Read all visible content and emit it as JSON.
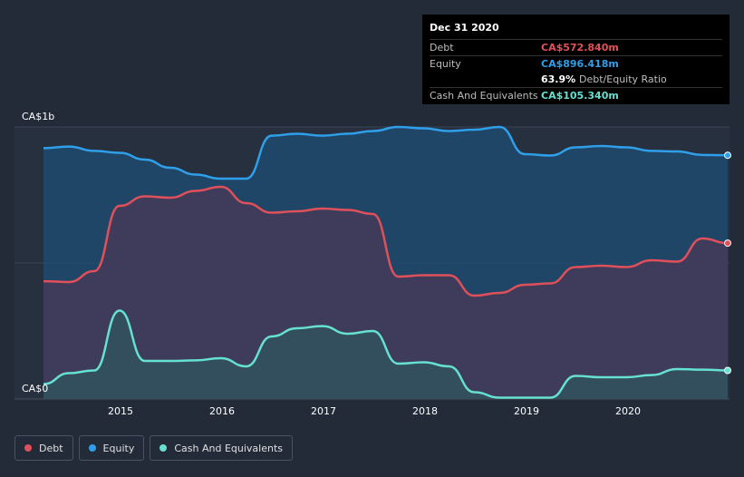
{
  "tooltip": {
    "date": "Dec 31 2020",
    "rows": [
      {
        "label": "Debt",
        "value": "CA$572.840m",
        "color": "#e0505a"
      },
      {
        "label": "Equity",
        "value": "CA$896.418m",
        "color": "#2f9fea"
      },
      {
        "label": "",
        "value": "63.9%",
        "sub": "Debt/Equity Ratio",
        "color": "#ffffff"
      },
      {
        "label": "Cash And Equivalents",
        "value": "CA$105.340m",
        "color": "#66e0d0"
      }
    ]
  },
  "legend": [
    {
      "label": "Debt",
      "color": "#e0505a"
    },
    {
      "label": "Equity",
      "color": "#2f9fea"
    },
    {
      "label": "Cash And Equivalents",
      "color": "#66e0d0"
    }
  ],
  "chart_data": {
    "type": "area",
    "y_tick_labels": [
      "CA$0",
      "CA$1b"
    ],
    "x_tick_labels": [
      "2015",
      "2016",
      "2017",
      "2018",
      "2019",
      "2020"
    ],
    "ylim": [
      0,
      1000
    ],
    "xlim": [
      2014.25,
      2021.0
    ],
    "grid": true,
    "legend_position": "bottom-left",
    "series": [
      {
        "name": "Equity",
        "color": "#2f9fea",
        "x": [
          2014.25,
          2014.5,
          2014.75,
          2015.0,
          2015.25,
          2015.5,
          2015.75,
          2016.0,
          2016.25,
          2016.5,
          2016.75,
          2017.0,
          2017.25,
          2017.5,
          2017.75,
          2018.0,
          2018.25,
          2018.5,
          2018.75,
          2019.0,
          2019.25,
          2019.5,
          2019.75,
          2020.0,
          2020.25,
          2020.5,
          2020.75,
          2021.0
        ],
        "values": [
          922,
          928,
          912,
          905,
          880,
          850,
          825,
          810,
          810,
          968,
          975,
          968,
          975,
          985,
          1000,
          995,
          985,
          990,
          1000,
          900,
          895,
          925,
          930,
          925,
          912,
          910,
          897,
          896
        ]
      },
      {
        "name": "Debt",
        "color": "#e0505a",
        "x": [
          2014.25,
          2014.5,
          2014.75,
          2015.0,
          2015.25,
          2015.5,
          2015.75,
          2016.0,
          2016.25,
          2016.5,
          2016.75,
          2017.0,
          2017.25,
          2017.5,
          2017.75,
          2018.0,
          2018.25,
          2018.5,
          2018.75,
          2019.0,
          2019.25,
          2019.5,
          2019.75,
          2020.0,
          2020.25,
          2020.5,
          2020.75,
          2021.0
        ],
        "values": [
          433,
          430,
          470,
          710,
          745,
          740,
          765,
          780,
          720,
          685,
          690,
          700,
          695,
          680,
          450,
          455,
          455,
          380,
          390,
          420,
          425,
          485,
          490,
          485,
          510,
          505,
          590,
          573
        ]
      },
      {
        "name": "Cash And Equivalents",
        "color": "#66e0d0",
        "x": [
          2014.25,
          2014.5,
          2014.75,
          2015.0,
          2015.25,
          2015.5,
          2015.75,
          2016.0,
          2016.25,
          2016.5,
          2016.75,
          2017.0,
          2017.25,
          2017.5,
          2017.75,
          2018.0,
          2018.25,
          2018.5,
          2018.75,
          2019.0,
          2019.25,
          2019.5,
          2019.75,
          2020.0,
          2020.25,
          2020.5,
          2020.75,
          2021.0
        ],
        "values": [
          55,
          95,
          105,
          325,
          140,
          140,
          142,
          150,
          120,
          230,
          260,
          268,
          240,
          250,
          130,
          135,
          120,
          25,
          5,
          5,
          5,
          85,
          80,
          80,
          88,
          110,
          108,
          105
        ]
      }
    ]
  }
}
